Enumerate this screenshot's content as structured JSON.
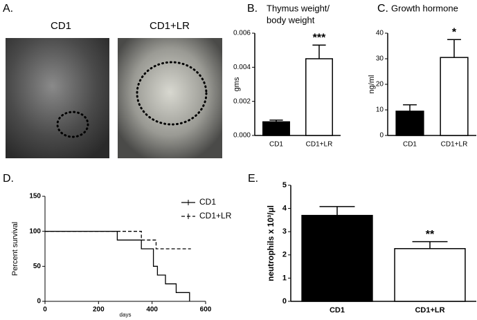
{
  "panel_a": {
    "label": "A.",
    "captions": [
      "CD1",
      "CD1+LR"
    ]
  },
  "chart_data": [
    {
      "type": "bar",
      "label": "B.",
      "title": [
        "Thymus weight/",
        "body weight"
      ],
      "ylabel": "gms",
      "categories": [
        "CD1",
        "CD1+LR"
      ],
      "values": [
        0.0008,
        0.0045
      ],
      "errors": [
        0.0001,
        0.0008
      ],
      "colors": [
        "#000000",
        "#ffffff"
      ],
      "annotations": [
        null,
        "***"
      ],
      "ylim": [
        0,
        0.006
      ],
      "yticks": [
        {
          "value": 0,
          "label": "0.000"
        },
        {
          "value": 0.002,
          "label": "0.002"
        },
        {
          "value": 0.004,
          "label": "0.004"
        },
        {
          "value": 0.006,
          "label": "0.006"
        }
      ]
    },
    {
      "type": "bar",
      "label": "C.",
      "title": [
        "Growth hormone"
      ],
      "ylabel": "ng/ml",
      "categories": [
        "CD1",
        "CD1+LR"
      ],
      "values": [
        9.5,
        30.5
      ],
      "errors": [
        2.5,
        7
      ],
      "colors": [
        "#000000",
        "#ffffff"
      ],
      "annotations": [
        null,
        "*"
      ],
      "ylim": [
        0,
        40
      ],
      "yticks": [
        0,
        10,
        20,
        30,
        40
      ]
    },
    {
      "type": "step",
      "label": "D.",
      "xlabel": "days",
      "ylabel": "Percent survival",
      "xlim": [
        0,
        600
      ],
      "xticks": [
        0,
        200,
        400,
        600
      ],
      "ylim": [
        0,
        150
      ],
      "yticks": [
        0,
        50,
        100,
        150
      ],
      "series": [
        {
          "name": "CD1",
          "color": "#000000",
          "dash": false,
          "x": [
            0,
            270,
            360,
            405,
            420,
            450,
            490,
            540
          ],
          "values": [
            100,
            87.5,
            75,
            50,
            37.5,
            25,
            12.5,
            0
          ]
        },
        {
          "name": "CD1+LR",
          "color": "#000000",
          "dash": true,
          "x": [
            0,
            360,
            415,
            545
          ],
          "values": [
            100,
            87.5,
            75,
            75
          ]
        }
      ]
    },
    {
      "type": "bar",
      "label": "E.",
      "ylabel": "neutrophils x 10³/μl",
      "categories": [
        "CD1",
        "CD1+LR"
      ],
      "values": [
        3.7,
        2.27
      ],
      "errors": [
        0.38,
        0.3
      ],
      "colors": [
        "#000000",
        "#ffffff"
      ],
      "annotations": [
        null,
        "**"
      ],
      "ylim": [
        0,
        5
      ],
      "yticks": [
        0,
        1,
        2,
        3,
        4,
        5
      ]
    }
  ]
}
